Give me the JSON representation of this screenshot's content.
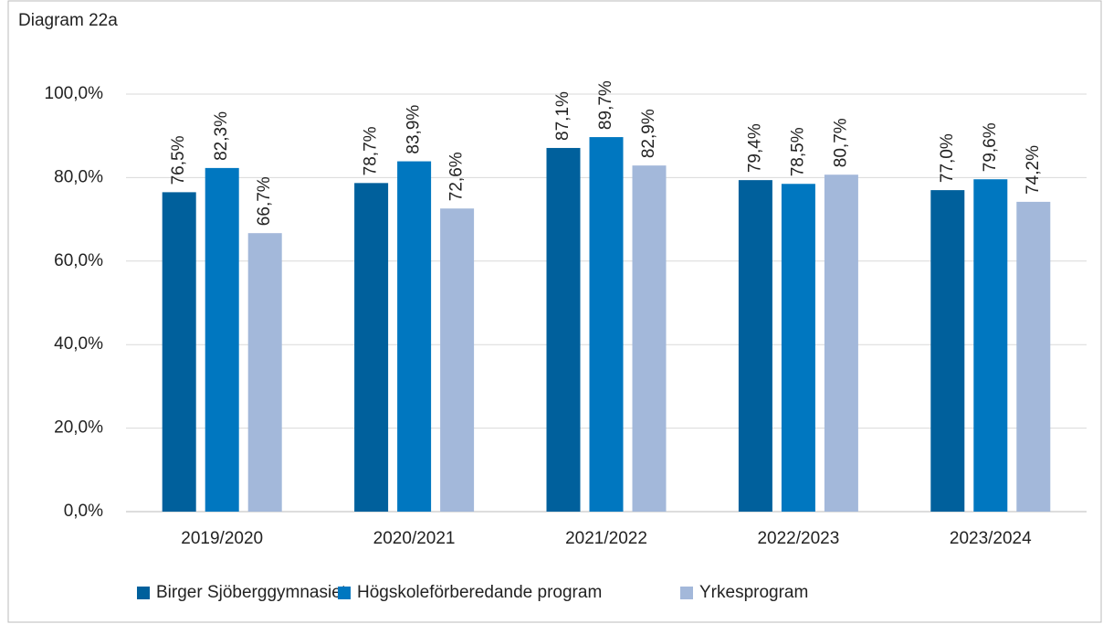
{
  "chart_data": {
    "type": "bar",
    "title": "Diagram 22a",
    "categories": [
      "2019/2020",
      "2020/2021",
      "2021/2022",
      "2022/2023",
      "2023/2024"
    ],
    "series": [
      {
        "name": "Birger Sjöberggymnasiet",
        "color": "#00609c",
        "values": [
          76.5,
          78.7,
          87.1,
          79.4,
          77.0
        ],
        "value_labels": [
          "76,5%",
          "78,7%",
          "87,1%",
          "79,4%",
          "77,0%"
        ]
      },
      {
        "name": "Högskoleförberedande program",
        "color": "#0077c0",
        "values": [
          82.3,
          83.9,
          89.7,
          78.5,
          79.6
        ],
        "value_labels": [
          "82,3%",
          "83,9%",
          "89,7%",
          "78,5%",
          "79,6%"
        ]
      },
      {
        "name": "Yrkesprogram",
        "color": "#a3b8da",
        "values": [
          66.7,
          72.6,
          82.9,
          80.7,
          74.2
        ],
        "value_labels": [
          "66,7%",
          "72,6%",
          "82,9%",
          "80,7%",
          "74,2%"
        ]
      }
    ],
    "ylim": [
      0,
      100
    ],
    "yticks": [
      {
        "value": 0,
        "label": "0,0%"
      },
      {
        "value": 20,
        "label": "20,0%"
      },
      {
        "value": 40,
        "label": "40,0%"
      },
      {
        "value": 60,
        "label": "60,0%"
      },
      {
        "value": 80,
        "label": "80,0%"
      },
      {
        "value": 100,
        "label": "100,0%"
      }
    ],
    "grid": true,
    "legend": "bottom"
  }
}
